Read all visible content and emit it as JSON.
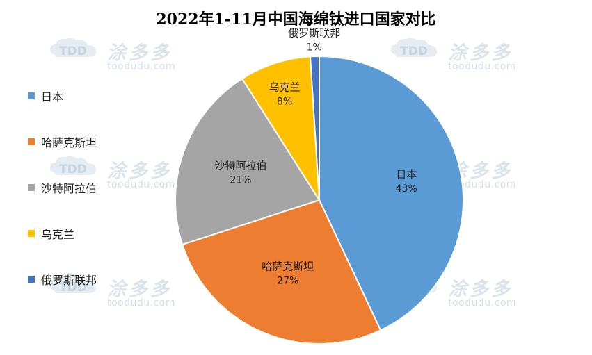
{
  "chart_data": {
    "type": "pie",
    "title": "2022年1-11月中国海绵钛进口国家对比",
    "slices": [
      {
        "name": "日本",
        "value": 43,
        "label": "43%",
        "color": "#5b9bd5"
      },
      {
        "name": "哈萨克斯坦",
        "value": 27,
        "label": "27%",
        "color": "#ed7d31"
      },
      {
        "name": "沙特阿拉伯",
        "value": 21,
        "label": "21%",
        "color": "#a5a5a5"
      },
      {
        "name": "乌克兰",
        "value": 8,
        "label": "8%",
        "color": "#ffc000"
      },
      {
        "name": "俄罗斯联邦",
        "value": 1,
        "label": "1%",
        "color": "#4472c4"
      }
    ],
    "legend_position": "left"
  },
  "watermark": {
    "logo": "TDD",
    "brand": "涂多多",
    "url": "toodudu.com"
  }
}
